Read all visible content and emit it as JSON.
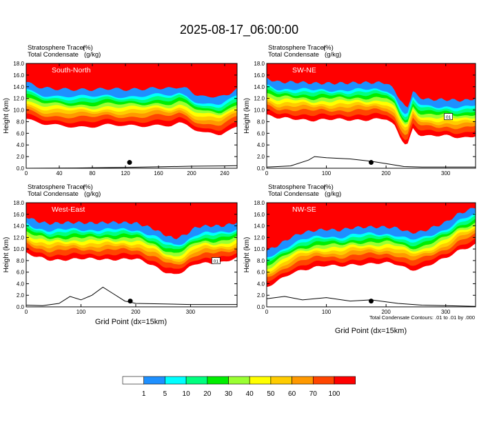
{
  "figure": {
    "title": "2025-08-17_06:00:00",
    "xlabel": "Grid Point (dx=15km)",
    "footnote": "Total Condensate Contours: .01 to .01 by .000",
    "colorbar": {
      "labels": [
        "1",
        "5",
        "10",
        "20",
        "30",
        "40",
        "50",
        "60",
        "70",
        "100"
      ],
      "colors": [
        "#ffffff",
        "#1e90ff",
        "#00ffff",
        "#00ff7f",
        "#00ee00",
        "#9aff32",
        "#ffff00",
        "#ffcc00",
        "#ff9900",
        "#ff4500",
        "#ff0000"
      ]
    }
  },
  "chart_data": [
    {
      "type": "heatmap",
      "name": "South-North",
      "left_title_1": "Stratosphere Tracer",
      "left_units_1": "(%)",
      "left_title_2": "Total Condensate",
      "left_units_2": "(g/kg)",
      "ylabel": "Height (km)",
      "xlim": [
        0,
        255
      ],
      "ylim": [
        0,
        18
      ],
      "xticks": [
        0,
        40,
        80,
        120,
        160,
        200,
        240
      ],
      "yticks": [
        0.0,
        2.0,
        4.0,
        6.0,
        8.0,
        10.0,
        12.0,
        14.0,
        16.0,
        18.0
      ],
      "point_marker": [
        125,
        1.0
      ],
      "tropopause_km": [
        [
          0,
          13.6
        ],
        [
          10,
          13.0
        ],
        [
          20,
          12.6
        ],
        [
          40,
          12.4
        ],
        [
          60,
          12.3
        ],
        [
          80,
          12.3
        ],
        [
          100,
          12.5
        ],
        [
          120,
          12.3
        ],
        [
          140,
          12.4
        ],
        [
          160,
          12.6
        ],
        [
          175,
          12.5
        ],
        [
          185,
          12.8
        ],
        [
          195,
          12.4
        ],
        [
          205,
          11.5
        ],
        [
          215,
          11.0
        ],
        [
          225,
          11.2
        ],
        [
          235,
          11.0
        ],
        [
          245,
          11.6
        ],
        [
          255,
          12.4
        ]
      ],
      "terrain_km": [
        [
          0,
          0.0
        ],
        [
          60,
          0.05
        ],
        [
          120,
          0.15
        ],
        [
          160,
          0.25
        ],
        [
          200,
          0.35
        ],
        [
          240,
          0.4
        ],
        [
          255,
          0.45
        ]
      ]
    },
    {
      "type": "heatmap",
      "name": "SW-NE",
      "left_title_1": "Stratosphere Tracer",
      "left_units_1": "(%)",
      "left_title_2": "Total Condensate",
      "left_units_2": "(g/kg)",
      "ylabel": "Height (km)",
      "xlim": [
        0,
        350
      ],
      "ylim": [
        0,
        18
      ],
      "xticks": [
        0,
        100,
        200,
        300
      ],
      "yticks": [
        0.0,
        2.0,
        4.0,
        6.0,
        8.0,
        10.0,
        12.0,
        14.0,
        16.0,
        18.0
      ],
      "point_marker": [
        175,
        1.0
      ],
      "contour_label": "01",
      "tropopause_km": [
        [
          0,
          14.2
        ],
        [
          20,
          13.6
        ],
        [
          50,
          13.6
        ],
        [
          80,
          13.4
        ],
        [
          120,
          13.4
        ],
        [
          160,
          13.5
        ],
        [
          200,
          13.5
        ],
        [
          215,
          12.2
        ],
        [
          225,
          10.2
        ],
        [
          235,
          9.0
        ],
        [
          245,
          12.0
        ],
        [
          255,
          11.0
        ],
        [
          270,
          10.6
        ],
        [
          300,
          10.6
        ],
        [
          330,
          10.4
        ],
        [
          350,
          10.8
        ]
      ],
      "terrain_km": [
        [
          0,
          0.2
        ],
        [
          40,
          0.4
        ],
        [
          70,
          1.4
        ],
        [
          80,
          2.0
        ],
        [
          100,
          1.8
        ],
        [
          140,
          1.6
        ],
        [
          175,
          1.2
        ],
        [
          200,
          0.8
        ],
        [
          230,
          0.3
        ],
        [
          260,
          0.2
        ],
        [
          300,
          0.2
        ],
        [
          350,
          0.2
        ]
      ]
    },
    {
      "type": "heatmap",
      "name": "West-East",
      "left_title_1": "Stratosphere Tracer",
      "left_units_1": "(%)",
      "left_title_2": "Total Condensate",
      "left_units_2": "(g/kg)",
      "ylabel": "Height (km)",
      "xlim": [
        0,
        385
      ],
      "ylim": [
        0,
        18
      ],
      "xticks": [
        0,
        100,
        200,
        300
      ],
      "yticks": [
        0.0,
        2.0,
        4.0,
        6.0,
        8.0,
        10.0,
        12.0,
        14.0,
        16.0,
        18.0
      ],
      "point_marker": [
        190,
        1.0
      ],
      "contour_label": "01",
      "tropopause_km": [
        [
          0,
          14.4
        ],
        [
          20,
          13.6
        ],
        [
          40,
          13.2
        ],
        [
          80,
          13.4
        ],
        [
          120,
          13.3
        ],
        [
          160,
          13.4
        ],
        [
          200,
          13.3
        ],
        [
          230,
          12.4
        ],
        [
          250,
          11.4
        ],
        [
          270,
          10.6
        ],
        [
          290,
          11.2
        ],
        [
          310,
          12.6
        ],
        [
          330,
          12.8
        ],
        [
          360,
          12.8
        ],
        [
          385,
          13.4
        ]
      ],
      "terrain_km": [
        [
          0,
          0.3
        ],
        [
          30,
          0.2
        ],
        [
          60,
          0.6
        ],
        [
          80,
          1.8
        ],
        [
          100,
          1.2
        ],
        [
          120,
          2.0
        ],
        [
          140,
          3.4
        ],
        [
          160,
          2.2
        ],
        [
          180,
          1.0
        ],
        [
          200,
          0.6
        ],
        [
          250,
          0.5
        ],
        [
          300,
          0.4
        ],
        [
          385,
          0.4
        ]
      ]
    },
    {
      "type": "heatmap",
      "name": "NW-SE",
      "left_title_1": "Stratosphere Tracer",
      "left_units_1": "(%)",
      "left_title_2": "Total Condensate",
      "left_units_2": "(g/kg)",
      "ylabel": "Height (km)",
      "xlim": [
        0,
        350
      ],
      "ylim": [
        0,
        18
      ],
      "xticks": [
        0,
        100,
        200,
        300
      ],
      "yticks": [
        0.0,
        2.0,
        4.0,
        6.0,
        8.0,
        10.0,
        12.0,
        14.0,
        16.0,
        18.0
      ],
      "point_marker": [
        175,
        1.0
      ],
      "tropopause_km": [
        [
          0,
          8.5
        ],
        [
          20,
          9.5
        ],
        [
          40,
          10.8
        ],
        [
          60,
          11.6
        ],
        [
          80,
          12.0
        ],
        [
          100,
          12.2
        ],
        [
          120,
          12.0
        ],
        [
          140,
          12.4
        ],
        [
          160,
          12.6
        ],
        [
          180,
          12.6
        ],
        [
          200,
          12.6
        ],
        [
          220,
          12.4
        ],
        [
          240,
          11.6
        ],
        [
          260,
          11.8
        ],
        [
          280,
          12.6
        ],
        [
          300,
          13.4
        ],
        [
          320,
          14.8
        ],
        [
          340,
          15.6
        ],
        [
          350,
          16.0
        ]
      ],
      "terrain_km": [
        [
          0,
          1.4
        ],
        [
          30,
          1.8
        ],
        [
          60,
          1.2
        ],
        [
          100,
          1.6
        ],
        [
          140,
          1.0
        ],
        [
          175,
          1.2
        ],
        [
          220,
          0.6
        ],
        [
          260,
          0.3
        ],
        [
          300,
          0.2
        ],
        [
          350,
          0.1
        ]
      ]
    }
  ]
}
